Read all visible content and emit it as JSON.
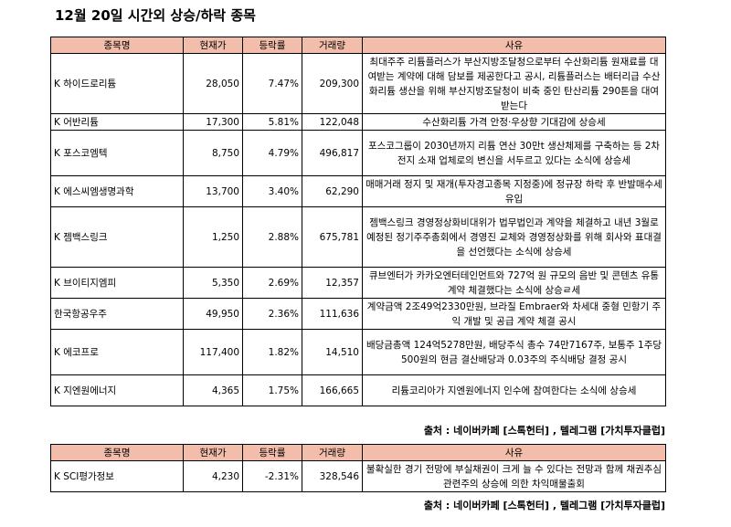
{
  "title": "12월 20일  시간외 상승/하락 종목",
  "headers": {
    "name": "종목명",
    "price": "현재가",
    "rate": "등락률",
    "volume": "거래량",
    "reason": "사유"
  },
  "rising": [
    {
      "name": "K 하이드로리튬",
      "price": "28,050",
      "rate": "7.47%",
      "volume": "209,300",
      "reason": "최대주주 리튬플러스가 부산지방조달청으로부터 수산화리튬 원재료를 대여받는 계약에 대해 담보를 제공한다고 공시, 리튬플러스는 배터리급 수산화리튬 생산을 위해 부산지방조달청이 비축 중인 탄산리튬 290톤을 대여 받는다"
    },
    {
      "name": "K 어반리튬",
      "price": "17,300",
      "rate": "5.81%",
      "volume": "122,048",
      "reason": "수산화리튬 가격 안정·우상향 기대감에 상승세"
    },
    {
      "name": "K 포스코엠텍",
      "price": "8,750",
      "rate": "4.79%",
      "volume": "496,817",
      "reason": "포스코그룹이 2030년까지 리튬 연산 30만t 생산체제를 구축하는 등 2차전지 소재 업체로의 변신을 서두르고 있다는 소식에 상승세"
    },
    {
      "name": "K 에스씨엠생명과학",
      "price": "13,700",
      "rate": "3.40%",
      "volume": "62,290",
      "reason": "매매거래 정지 및 재개(투자경고종목 지정중)에 정규장 하락 후 반발매수세유입"
    },
    {
      "name": "K 젬백스링크",
      "price": "1,250",
      "rate": "2.88%",
      "volume": "675,781",
      "reason": "젬백스링크 경영정상화비대위가 법무법인과 계약을 체결하고 내년 3월로 예정된 정기주주총회에서 경영진 교체와 경영정상화를 위해 회사와 표대결을 선언했다는 소식에 상승세"
    },
    {
      "name": "K 브이티지엠피",
      "price": "5,350",
      "rate": "2.69%",
      "volume": "12,357",
      "reason": "큐브엔터가 카카오엔터테인먼트와 727억 원 규모의 음반 및 콘텐츠 유통 계약 체결했다는 소식에 상승ㄹ세"
    },
    {
      "name": "  한국항공우주",
      "price": "49,950",
      "rate": "2.36%",
      "volume": "111,636",
      "reason": "계약금액 2조49억2330만원, 브라질 Embraer와 차세대 중형 민항기 주익 개발 및 공급 계약 체결 공시"
    },
    {
      "name": "K 에코프로",
      "price": "117,400",
      "rate": "1.82%",
      "volume": "14,510",
      "reason": "배당금총액 124억5278만원, 배당주식 총수 74만7167주, 보통주 1주당 500원의 현금 결산배당과 0.03주의 주식배당 결정 공시"
    },
    {
      "name": "K 지엔원에너지",
      "price": "4,365",
      "rate": "1.75%",
      "volume": "166,665",
      "reason": "리튬코리아가 지엔원에너지 인수에 참여한다는 소식에 상승세"
    }
  ],
  "falling": [
    {
      "name": "K SCI평가정보",
      "price": "4,230",
      "rate": "-2.31%",
      "volume": "328,546",
      "reason": "불확실한 경기 전망에 부실채권이 크게 늘 수 있다는 전망과 함께 채권추심 관련주의 상승에 의한 차익매물출회"
    }
  ],
  "source1": "출처 : 네이버카페 [스톡헌터] , 텔레그램 [가치투자클럽]",
  "source2": "출처 : 네이버카페 [스톡헌터] , 텔레그램 [가치투자클럽]",
  "colors": {
    "header_bg": "#f2bdab"
  }
}
